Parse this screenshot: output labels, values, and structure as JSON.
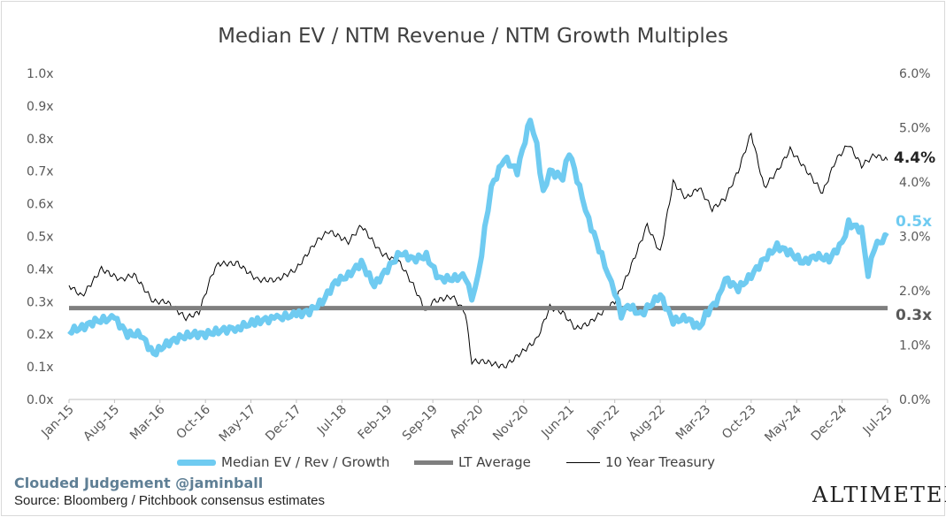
{
  "title": "Median EV / NTM Revenue / NTM Growth Multiples",
  "credit": "Clouded Judgement @jaminball",
  "source": "Source: Bloomberg / Pitchbook consensus estimates",
  "brand": "ALTIMETER",
  "colors": {
    "ev": "#6fcbf1",
    "avg": "#7f7f7f",
    "treasury": "#000000",
    "axis": "#595959",
    "end_ev_label": "#6fcbf1"
  },
  "end_labels": {
    "treasury": "4.4%",
    "ev": "0.5x",
    "avg": "0.3x"
  },
  "chart_data": {
    "type": "line",
    "title": "Median EV / NTM Revenue / NTM Growth Multiples",
    "x_tick_labels": [
      "Jan-15",
      "Aug-15",
      "Mar-16",
      "Oct-16",
      "May-17",
      "Dec-17",
      "Jul-18",
      "Feb-19",
      "Sep-19",
      "Apr-20",
      "Nov-20",
      "Jun-21",
      "Jan-22",
      "Aug-22",
      "Mar-23",
      "Oct-23",
      "May-24",
      "Dec-24",
      "Jul-25"
    ],
    "y_left_ticks": [
      "0.0x",
      "0.1x",
      "0.2x",
      "0.3x",
      "0.4x",
      "0.5x",
      "0.6x",
      "0.7x",
      "0.8x",
      "0.9x",
      "1.0x"
    ],
    "y_left_range": [
      0,
      1.0
    ],
    "y_right_ticks": [
      "0.0%",
      "1.0%",
      "2.0%",
      "3.0%",
      "4.0%",
      "5.0%",
      "6.0%"
    ],
    "y_right_range": [
      0,
      6.0
    ],
    "legend_position": "bottom",
    "series": [
      {
        "name": "Median EV / Rev / Growth",
        "axis": "left",
        "x": [
          "2015-01",
          "2015-03",
          "2015-05",
          "2015-08",
          "2015-10",
          "2015-12",
          "2016-02",
          "2016-04",
          "2016-06",
          "2016-08",
          "2016-10",
          "2016-12",
          "2017-03",
          "2017-06",
          "2017-09",
          "2017-12",
          "2018-02",
          "2018-04",
          "2018-06",
          "2018-08",
          "2018-10",
          "2018-12",
          "2019-02",
          "2019-04",
          "2019-06",
          "2019-08",
          "2019-10",
          "2019-12",
          "2020-02",
          "2020-03",
          "2020-04",
          "2020-05",
          "2020-06",
          "2020-08",
          "2020-10",
          "2020-12",
          "2021-01",
          "2021-02",
          "2021-03",
          "2021-05",
          "2021-06",
          "2021-08",
          "2021-09",
          "2021-11",
          "2021-12",
          "2022-01",
          "2022-02",
          "2022-03",
          "2022-05",
          "2022-06",
          "2022-08",
          "2022-10",
          "2022-12",
          "2023-02",
          "2023-03",
          "2023-05",
          "2023-06",
          "2023-08",
          "2023-10",
          "2023-12",
          "2024-02",
          "2024-04",
          "2024-06",
          "2024-08",
          "2024-10",
          "2024-12",
          "2025-01",
          "2025-03",
          "2025-04",
          "2025-05",
          "2025-07"
        ],
        "values": [
          0.21,
          0.22,
          0.24,
          0.25,
          0.2,
          0.2,
          0.14,
          0.17,
          0.19,
          0.2,
          0.2,
          0.21,
          0.22,
          0.24,
          0.25,
          0.26,
          0.27,
          0.3,
          0.36,
          0.38,
          0.42,
          0.35,
          0.4,
          0.45,
          0.43,
          0.44,
          0.37,
          0.37,
          0.38,
          0.31,
          0.38,
          0.52,
          0.65,
          0.74,
          0.7,
          0.86,
          0.78,
          0.63,
          0.7,
          0.68,
          0.76,
          0.62,
          0.55,
          0.44,
          0.38,
          0.33,
          0.26,
          0.29,
          0.26,
          0.28,
          0.32,
          0.24,
          0.25,
          0.22,
          0.26,
          0.31,
          0.37,
          0.34,
          0.38,
          0.43,
          0.47,
          0.45,
          0.42,
          0.44,
          0.43,
          0.48,
          0.54,
          0.52,
          0.38,
          0.47,
          0.5
        ]
      },
      {
        "name": "LT Average",
        "axis": "left",
        "x": [
          "2015-01",
          "2025-07"
        ],
        "values": [
          0.28,
          0.28
        ]
      },
      {
        "name": "10 Year Treasury",
        "axis": "right",
        "x": [
          "2015-01",
          "2015-03",
          "2015-06",
          "2015-09",
          "2015-11",
          "2016-02",
          "2016-04",
          "2016-07",
          "2016-09",
          "2016-11",
          "2016-12",
          "2017-03",
          "2017-06",
          "2017-09",
          "2017-12",
          "2018-03",
          "2018-05",
          "2018-08",
          "2018-10",
          "2019-01",
          "2019-04",
          "2019-06",
          "2019-08",
          "2019-09",
          "2019-12",
          "2020-02",
          "2020-03",
          "2020-05",
          "2020-08",
          "2020-10",
          "2021-01",
          "2021-03",
          "2021-05",
          "2021-07",
          "2021-09",
          "2021-11",
          "2022-01",
          "2022-03",
          "2022-05",
          "2022-06",
          "2022-08",
          "2022-10",
          "2022-12",
          "2023-02",
          "2023-04",
          "2023-06",
          "2023-08",
          "2023-10",
          "2023-12",
          "2024-02",
          "2024-04",
          "2024-06",
          "2024-09",
          "2024-11",
          "2025-01",
          "2025-03",
          "2025-05",
          "2025-07"
        ],
        "values": [
          2.1,
          1.9,
          2.4,
          2.2,
          2.3,
          1.8,
          1.8,
          1.5,
          1.6,
          2.3,
          2.5,
          2.5,
          2.2,
          2.2,
          2.4,
          2.9,
          3.1,
          2.9,
          3.2,
          2.7,
          2.5,
          2.1,
          1.6,
          1.8,
          1.9,
          1.6,
          0.7,
          0.7,
          0.6,
          0.8,
          1.1,
          1.7,
          1.6,
          1.3,
          1.4,
          1.6,
          1.8,
          2.3,
          2.9,
          3.2,
          2.7,
          4.0,
          3.7,
          3.9,
          3.5,
          3.7,
          4.2,
          4.9,
          3.9,
          4.2,
          4.6,
          4.3,
          3.8,
          4.4,
          4.7,
          4.3,
          4.5,
          4.4
        ]
      }
    ]
  }
}
